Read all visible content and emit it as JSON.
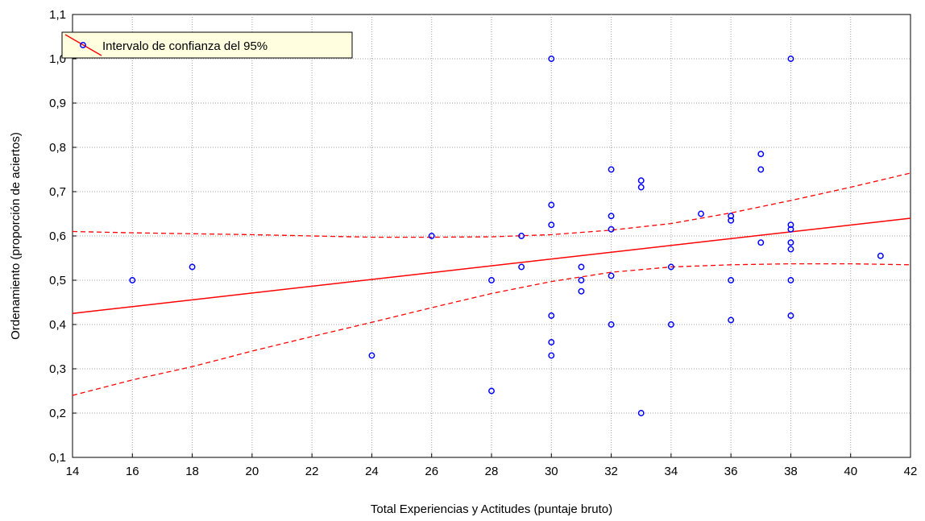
{
  "chart_data": {
    "type": "scatter",
    "title": "",
    "xlabel": "Total Experiencias y Actitudes (puntaje bruto)",
    "ylabel": "Ordenamiento (proporción de aciertos)",
    "xlim": [
      14,
      42
    ],
    "ylim": [
      0.1,
      1.1
    ],
    "x_ticks": [
      "14",
      "16",
      "18",
      "20",
      "22",
      "24",
      "26",
      "28",
      "30",
      "32",
      "34",
      "36",
      "38",
      "40",
      "42"
    ],
    "y_ticks": [
      "0,1",
      "0,2",
      "0,3",
      "0,4",
      "0,5",
      "0,6",
      "0,7",
      "0,8",
      "0,9",
      "1,0",
      "1,1"
    ],
    "grid": true,
    "legend": {
      "position": "top-left",
      "label": "Intervalo de confianza del 95%"
    },
    "points": [
      {
        "x": 16,
        "y": 0.5
      },
      {
        "x": 18,
        "y": 0.53
      },
      {
        "x": 24,
        "y": 0.33
      },
      {
        "x": 26,
        "y": 0.6
      },
      {
        "x": 28,
        "y": 0.5
      },
      {
        "x": 28,
        "y": 0.25
      },
      {
        "x": 29,
        "y": 0.6
      },
      {
        "x": 29,
        "y": 0.53
      },
      {
        "x": 30,
        "y": 1.0
      },
      {
        "x": 30,
        "y": 0.67
      },
      {
        "x": 30,
        "y": 0.625
      },
      {
        "x": 30,
        "y": 0.42
      },
      {
        "x": 30,
        "y": 0.36
      },
      {
        "x": 30,
        "y": 0.33
      },
      {
        "x": 31,
        "y": 0.53
      },
      {
        "x": 31,
        "y": 0.5
      },
      {
        "x": 31,
        "y": 0.475
      },
      {
        "x": 32,
        "y": 0.75
      },
      {
        "x": 32,
        "y": 0.645
      },
      {
        "x": 32,
        "y": 0.615
      },
      {
        "x": 32,
        "y": 0.51
      },
      {
        "x": 32,
        "y": 0.4
      },
      {
        "x": 33,
        "y": 0.725
      },
      {
        "x": 33,
        "y": 0.71
      },
      {
        "x": 33,
        "y": 0.2
      },
      {
        "x": 34,
        "y": 0.53
      },
      {
        "x": 34,
        "y": 0.4
      },
      {
        "x": 35,
        "y": 0.65
      },
      {
        "x": 36,
        "y": 0.645
      },
      {
        "x": 36,
        "y": 0.635
      },
      {
        "x": 36,
        "y": 0.5
      },
      {
        "x": 36,
        "y": 0.41
      },
      {
        "x": 37,
        "y": 0.785
      },
      {
        "x": 37,
        "y": 0.75
      },
      {
        "x": 37,
        "y": 0.585
      },
      {
        "x": 38,
        "y": 1.0
      },
      {
        "x": 38,
        "y": 0.625
      },
      {
        "x": 38,
        "y": 0.615
      },
      {
        "x": 38,
        "y": 0.585
      },
      {
        "x": 38,
        "y": 0.57
      },
      {
        "x": 38,
        "y": 0.5
      },
      {
        "x": 38,
        "y": 0.42
      },
      {
        "x": 41,
        "y": 0.555
      }
    ],
    "regression_line": {
      "x": [
        14,
        42
      ],
      "y": [
        0.425,
        0.64
      ]
    },
    "ci_upper": {
      "x": [
        14,
        16,
        18,
        20,
        22,
        24,
        26,
        28,
        30,
        32,
        34,
        36,
        38,
        40,
        42
      ],
      "y": [
        0.61,
        0.607,
        0.605,
        0.603,
        0.6,
        0.597,
        0.597,
        0.598,
        0.603,
        0.613,
        0.628,
        0.652,
        0.68,
        0.71,
        0.742
      ]
    },
    "ci_lower": {
      "x": [
        14,
        16,
        18,
        20,
        22,
        24,
        26,
        28,
        30,
        32,
        34,
        36,
        38,
        40,
        42
      ],
      "y": [
        0.24,
        0.275,
        0.305,
        0.34,
        0.373,
        0.405,
        0.438,
        0.47,
        0.497,
        0.518,
        0.53,
        0.535,
        0.537,
        0.537,
        0.535
      ]
    },
    "colors": {
      "points": "#0000ff",
      "lines": "#ff0000",
      "grid": "#a0a0a0",
      "legend_bg": "#ffffe0"
    }
  }
}
